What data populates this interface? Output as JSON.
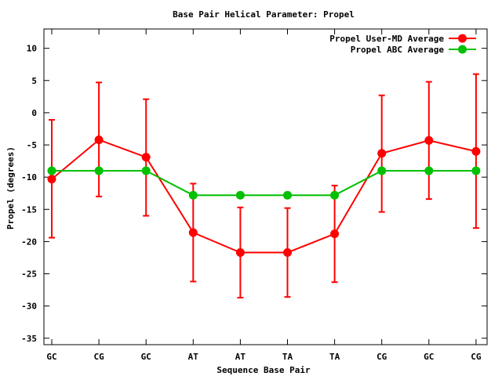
{
  "chart_data": {
    "type": "line",
    "title": "Base Pair Helical Parameter: Propel",
    "xlabel": "Sequence Base Pair",
    "ylabel": "Propel (degrees)",
    "categories": [
      "GC",
      "CG",
      "GC",
      "AT",
      "AT",
      "TA",
      "TA",
      "CG",
      "GC",
      "CG"
    ],
    "ylim": [
      -36,
      13
    ],
    "yticks": [
      10,
      5,
      0,
      -5,
      -10,
      -15,
      -20,
      -25,
      -30,
      -35
    ],
    "legend_position": "top-right",
    "series": [
      {
        "name": "Propel User-MD Average",
        "color": "#ff0000",
        "values": [
          -10.3,
          -4.2,
          -6.9,
          -18.6,
          -21.7,
          -21.7,
          -18.8,
          -6.3,
          -4.3,
          -6.0
        ],
        "error_low": [
          -19.4,
          -13.0,
          -16.0,
          -26.2,
          -28.7,
          -28.6,
          -26.3,
          -15.4,
          -13.4,
          -17.9
        ],
        "error_high": [
          -1.1,
          4.7,
          2.1,
          -11.0,
          -14.7,
          -14.8,
          -11.3,
          2.7,
          4.8,
          6.0
        ]
      },
      {
        "name": "Propel ABC Average",
        "color": "#00c000",
        "values": [
          -9.0,
          -9.0,
          -9.0,
          -12.8,
          -12.8,
          -12.8,
          -12.8,
          -9.0,
          -9.0,
          -9.0
        ]
      }
    ]
  }
}
